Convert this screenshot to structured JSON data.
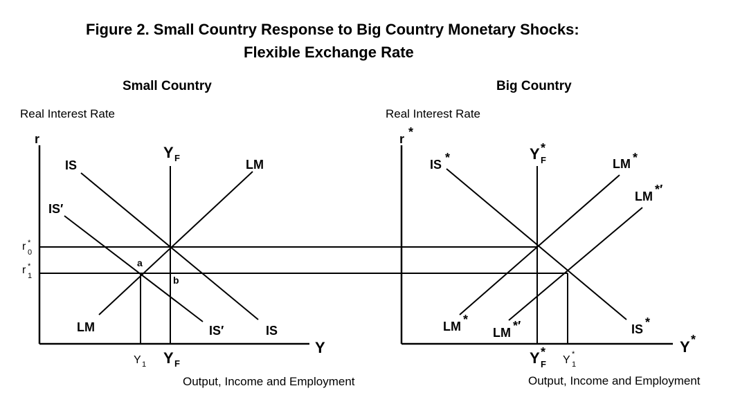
{
  "title": {
    "line1": "Figure 2.  Small Country Response to Big Country Monetary Shocks:",
    "line2": "Flexible Exchange Rate"
  },
  "small_country": {
    "panel_title": "Small Country",
    "y_axis_title": "Real Interest Rate",
    "x_axis_title": "Output, Income and Employment",
    "y_axis_symbol": "r",
    "x_axis_symbol": "Y",
    "yf_top": "Y",
    "yf_top_sub": "F",
    "yf_bottom": "Y",
    "yf_bottom_sub": "F",
    "y1": "Y",
    "y1_sub": "1",
    "r0": "r",
    "r0_sup": "*",
    "r0_sub": "0",
    "r1": "r",
    "r1_sup": "*",
    "r1_sub": "1",
    "is_top": "IS",
    "is_bottom": "IS",
    "is_prime_top": "IS′",
    "is_prime_bottom": "IS′",
    "lm_top": "LM",
    "lm_bottom": "LM",
    "point_a": "a",
    "point_b": "b"
  },
  "big_country": {
    "panel_title": "Big Country",
    "y_axis_title": "Real Interest Rate",
    "x_axis_title": "Output, Income and Employment",
    "y_axis_symbol": "r",
    "y_axis_sup": "*",
    "x_axis_symbol": "Y",
    "x_axis_sup": "*",
    "yf_top": "Y",
    "yf_top_sup": "*",
    "yf_top_sub": "F",
    "yf_bottom": "Y",
    "yf_bottom_sup": "*",
    "yf_bottom_sub": "F",
    "y1": "Y",
    "y1_sup": "*",
    "y1_sub": "1",
    "is_top": "IS",
    "is_top_sup": "*",
    "is_bottom": "IS",
    "is_bottom_sup": "*",
    "lm_top": "LM",
    "lm_top_sup": "*",
    "lm_prime_top": "LM",
    "lm_prime_top_sup": "*′",
    "lm_bottom": "LM",
    "lm_bottom_sup": "*",
    "lm_prime_bottom": "LM",
    "lm_prime_bottom_sup": "*′"
  }
}
